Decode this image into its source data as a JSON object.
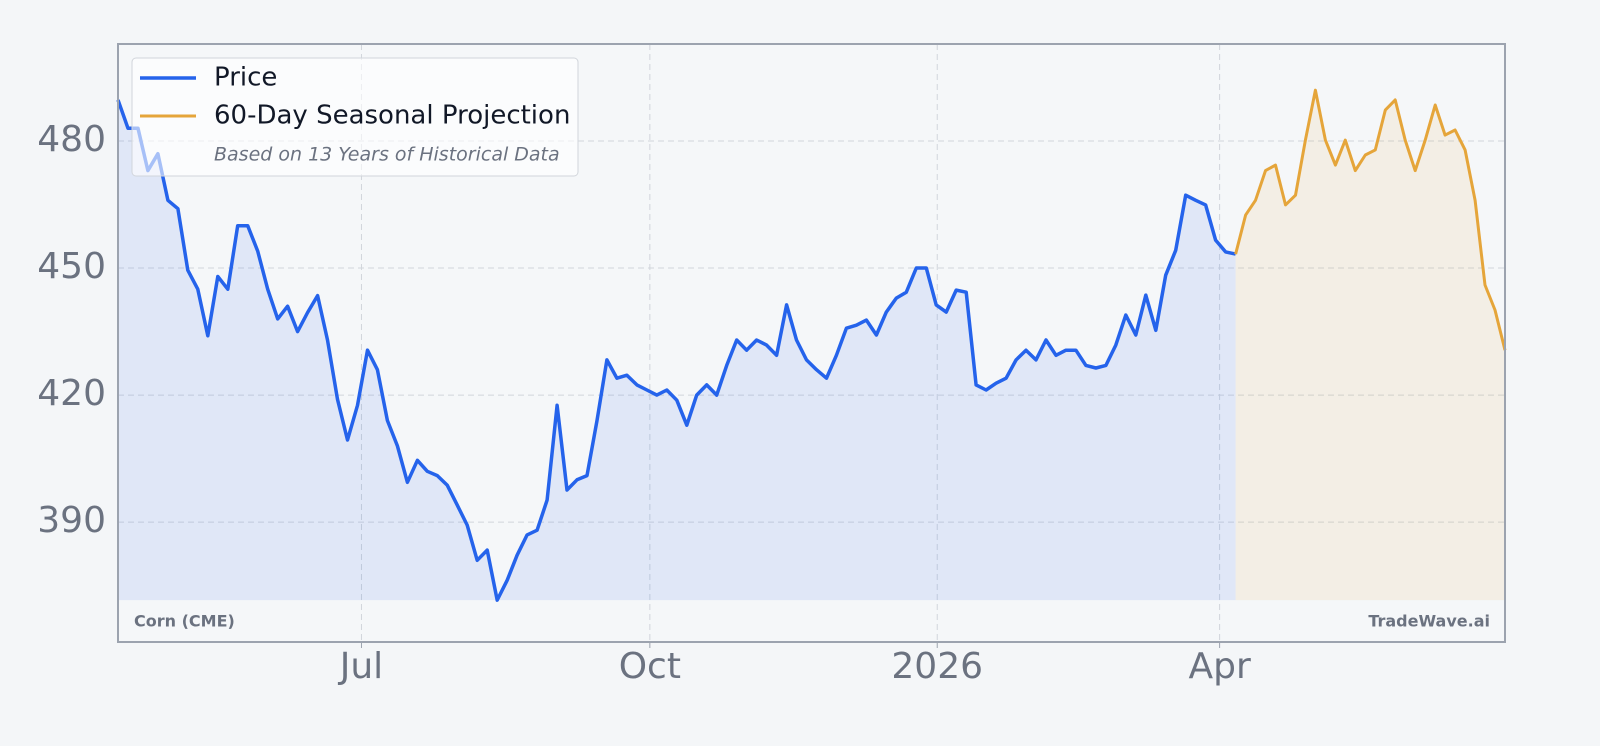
{
  "chart_data": {
    "type": "line",
    "legend": "upper left",
    "legend_note": "Based on 13 Years of Historical Data",
    "source_label": "Corn (CME)",
    "watermark": "TradeWave.ai",
    "grid": true,
    "xlim": [
      0,
      139
    ],
    "xticks": [
      {
        "value": 24.4,
        "label": "Jul"
      },
      {
        "value": 53.3,
        "label": "Oct"
      },
      {
        "value": 82.1,
        "label": "2026"
      },
      {
        "value": 110.4,
        "label": "Apr"
      }
    ],
    "ylim": [
      361.7,
      502.9
    ],
    "yticks": [
      390,
      420,
      450,
      480
    ],
    "series": [
      {
        "name": "Price",
        "color": "#2563eb",
        "values": [
          489.7,
          483,
          483,
          473,
          477,
          466,
          464,
          449.5,
          445,
          434,
          448,
          445,
          460,
          460,
          454,
          445,
          438,
          441,
          435,
          439.5,
          443.5,
          433,
          419,
          409.4,
          417.6,
          430.6,
          426,
          414,
          408,
          399.4,
          404.6,
          402,
          401,
          398.7,
          394,
          389.3,
          381,
          383.4,
          371.6,
          376.3,
          382.2,
          387,
          388.1,
          395.2,
          417.6,
          397.6,
          400,
          401,
          414,
          428.3,
          424,
          424.7,
          422.4,
          421.2,
          420,
          421.2,
          418.8,
          412.9,
          420,
          422.4,
          420,
          427,
          433,
          430.6,
          433,
          431.8,
          429.4,
          441.3,
          433,
          428.3,
          426,
          424,
          429.4,
          435.8,
          436.5,
          437.7,
          434.2,
          439.6,
          442.9,
          444.3,
          450,
          450,
          441.3,
          439.6,
          444.8,
          444.3,
          422.4,
          421.2,
          422.8,
          424,
          428.3,
          430.6,
          428.3,
          433,
          429.4,
          430.6,
          430.6,
          427,
          426.4,
          427,
          431.8,
          438.9,
          434.2,
          443.6,
          435.3,
          448.3,
          454.2,
          467.2,
          466,
          464.9,
          456.6,
          453.8,
          453.3,
          null,
          null,
          null,
          null,
          null,
          null,
          null,
          null,
          null,
          null,
          null,
          null,
          null,
          null,
          null,
          null,
          null,
          null,
          null,
          null,
          null,
          null,
          null,
          null,
          null,
          null,
          null
        ]
      },
      {
        "name": "60-Day Seasonal Projection",
        "color": "#e5a53a",
        "values": [
          null,
          null,
          null,
          null,
          null,
          null,
          null,
          null,
          null,
          null,
          null,
          null,
          null,
          null,
          null,
          null,
          null,
          null,
          null,
          null,
          null,
          null,
          null,
          null,
          null,
          null,
          null,
          null,
          null,
          null,
          null,
          null,
          null,
          null,
          null,
          null,
          null,
          null,
          null,
          null,
          null,
          null,
          null,
          null,
          null,
          null,
          null,
          null,
          null,
          null,
          null,
          null,
          null,
          null,
          null,
          null,
          null,
          null,
          null,
          null,
          null,
          null,
          null,
          null,
          null,
          null,
          null,
          null,
          null,
          null,
          null,
          null,
          null,
          null,
          null,
          null,
          null,
          null,
          null,
          null,
          null,
          null,
          null,
          null,
          null,
          null,
          null,
          null,
          null,
          null,
          null,
          null,
          null,
          null,
          null,
          null,
          null,
          null,
          null,
          null,
          null,
          null,
          null,
          null,
          null,
          null,
          null,
          null,
          null,
          null,
          null,
          null,
          453.3,
          462.5,
          466,
          473,
          474.3,
          464.9,
          467.2,
          480.2,
          492,
          480.2,
          474.3,
          480.2,
          473,
          476.7,
          477.9,
          487.3,
          489.7,
          480.2,
          473,
          480.2,
          488.5,
          481.4,
          482.6,
          477.9,
          466,
          446,
          440.1,
          430.6
        ]
      }
    ]
  }
}
